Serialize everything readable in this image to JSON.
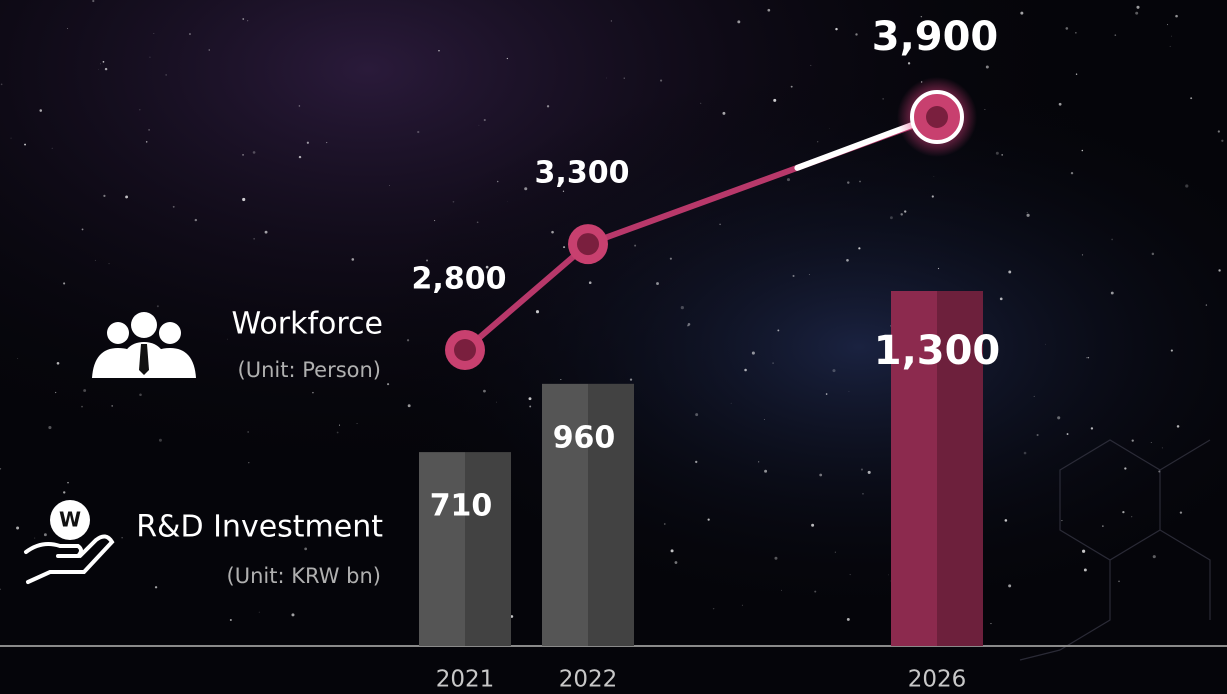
{
  "chart_data": {
    "type": "bar-line",
    "categories": [
      "2021",
      "2022",
      "2026"
    ],
    "series": [
      {
        "name": "Workforce",
        "type": "line",
        "unit": "(Unit: Person)",
        "color": "#b8386a",
        "values": [
          2800,
          3300,
          3900
        ],
        "value_labels": [
          "2,800",
          "3,300",
          "3,900"
        ]
      },
      {
        "name": "R&D Investment",
        "type": "bar",
        "unit": "(Unit: KRW bn)",
        "colors": [
          "#555555",
          "#555555",
          "#8c2a4e"
        ],
        "values": [
          710,
          960,
          1300
        ],
        "value_labels": [
          "710",
          "960",
          "1,300"
        ]
      }
    ]
  }
}
